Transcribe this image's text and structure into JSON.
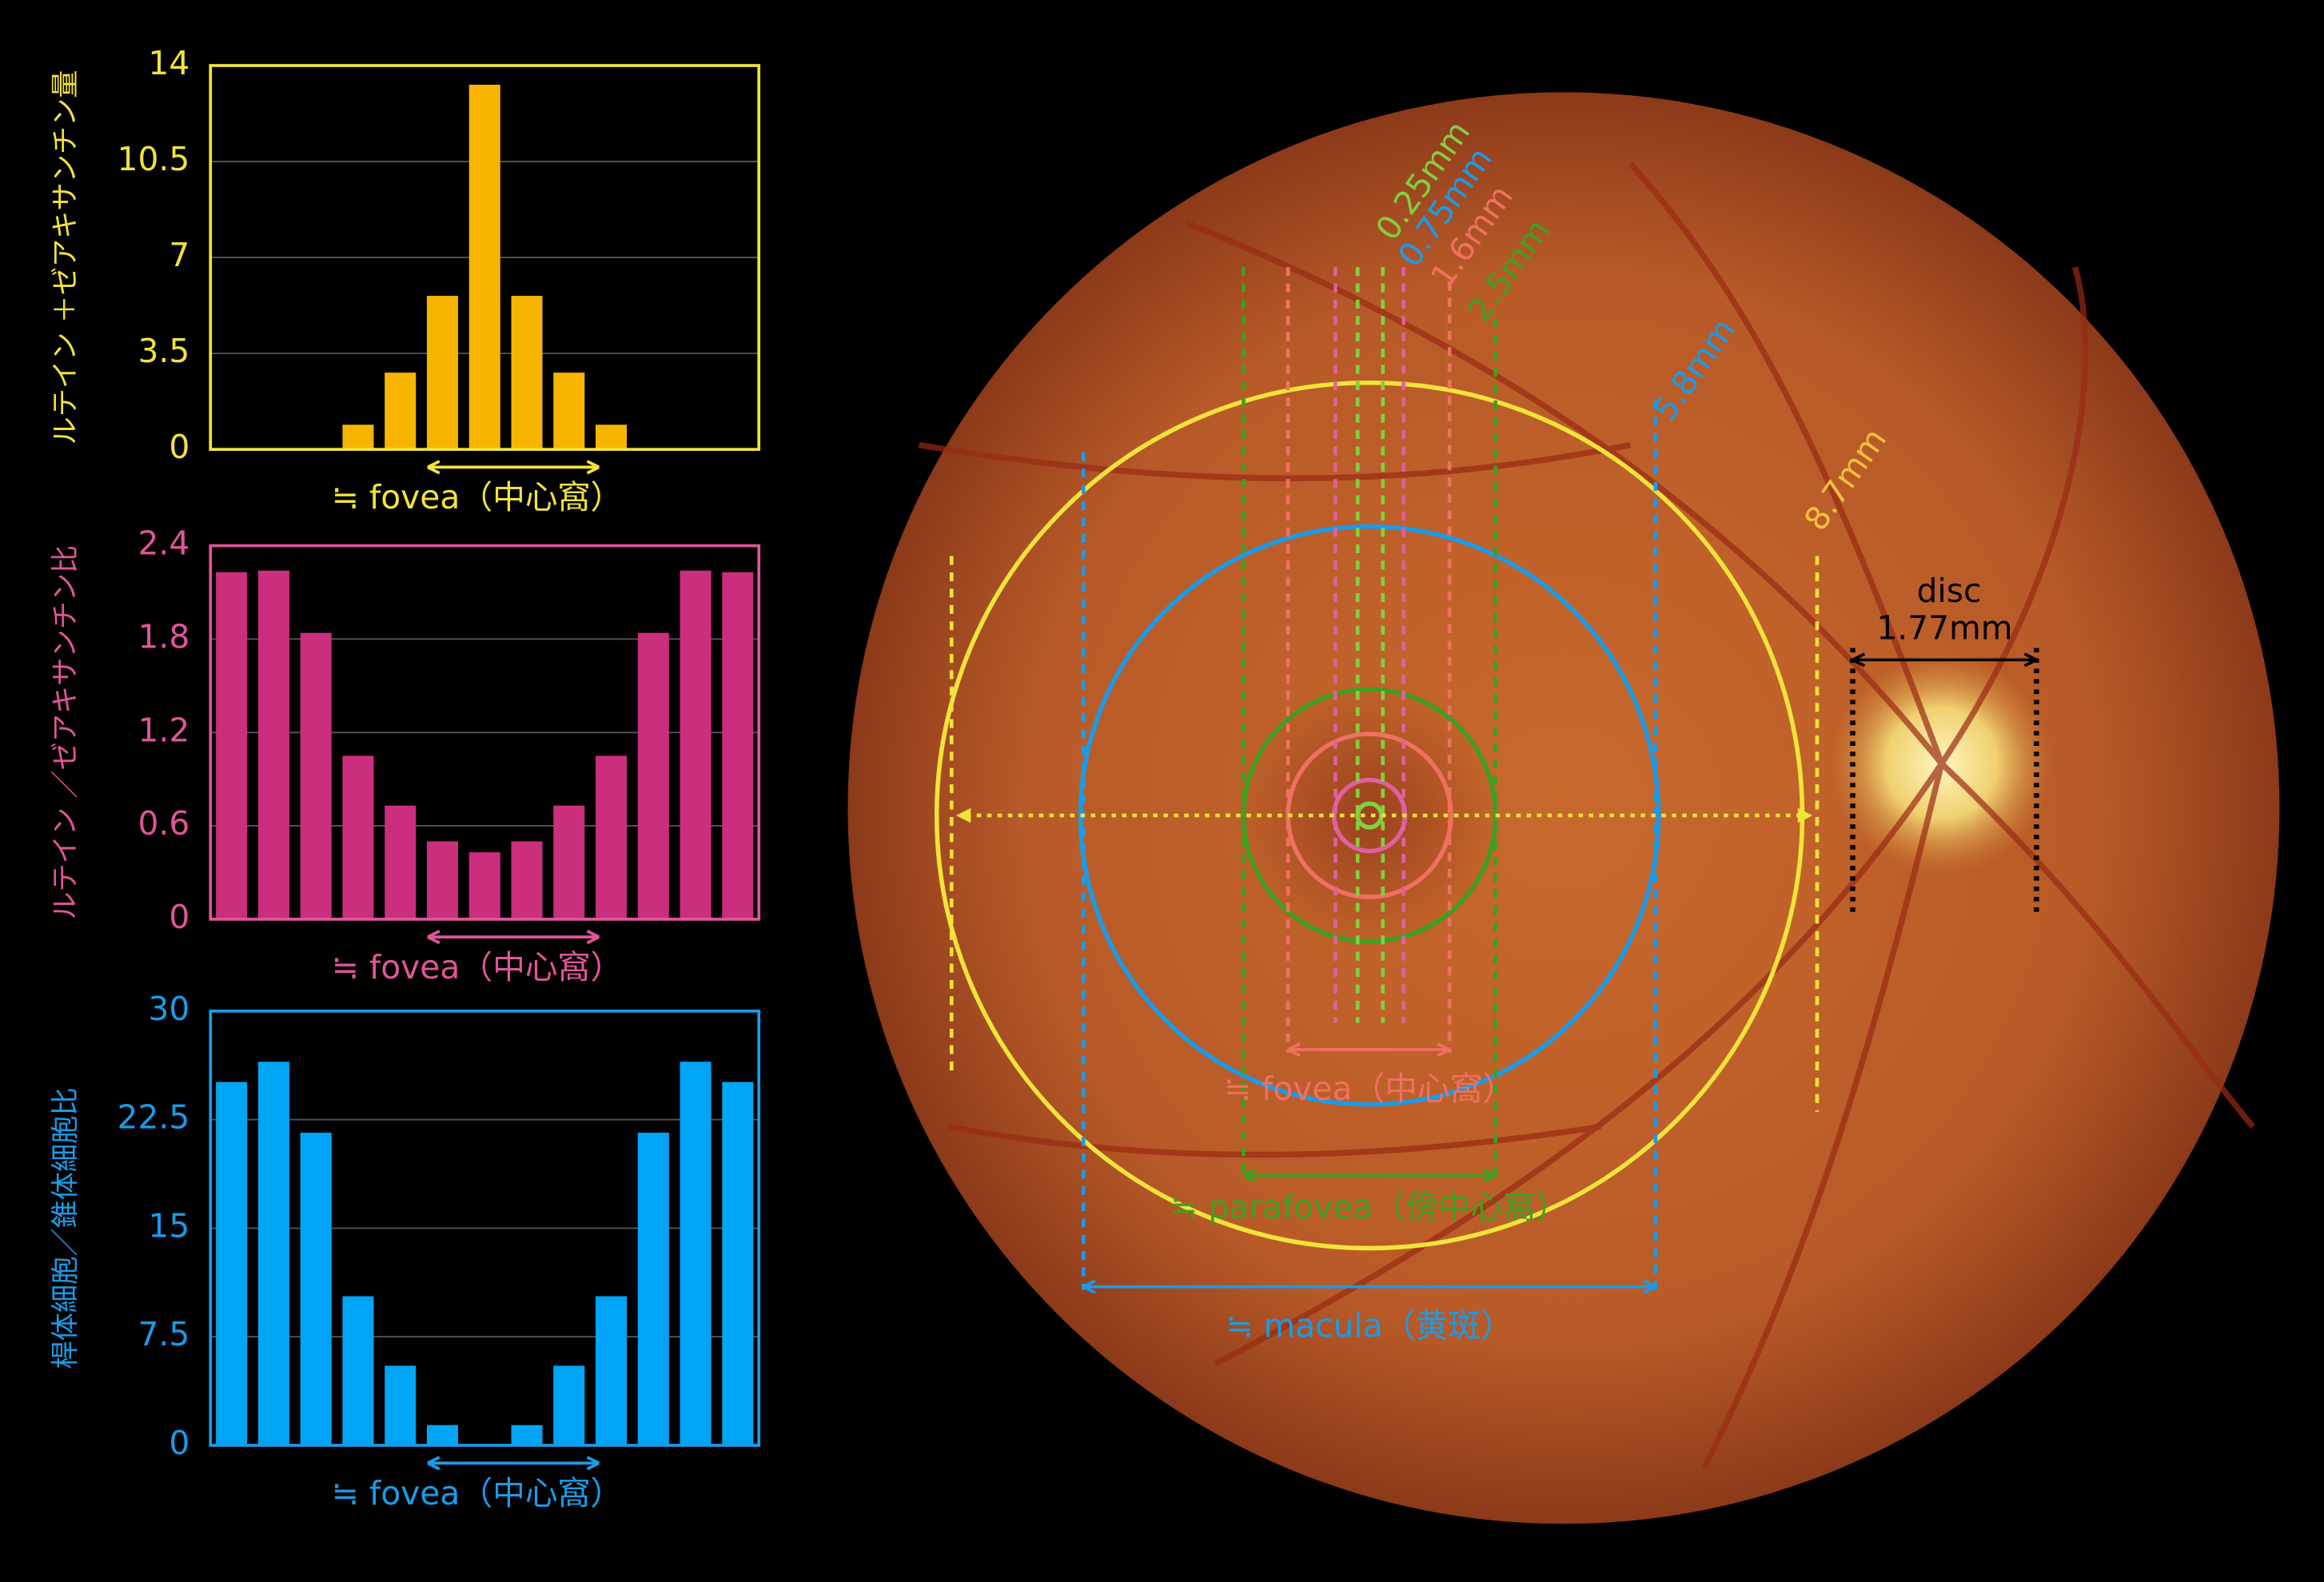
{
  "chart_data": [
    {
      "type": "bar",
      "ylabel": "ルテイン ＋ゼアキサンチン量",
      "xlabel": "≒ fovea（中心窩）",
      "categories": [
        null,
        null,
        null,
        null,
        null,
        null,
        null,
        null,
        null,
        null,
        null,
        null,
        null
      ],
      "values": [
        0,
        0,
        0,
        0.9,
        2.8,
        5.6,
        13.3,
        5.6,
        2.8,
        0.9,
        0,
        0,
        0
      ],
      "color": "#f7b500",
      "accent": "#f2e33a",
      "ylim": [
        0,
        14
      ],
      "yticks": [
        0,
        3.5,
        7,
        10.5,
        14
      ],
      "grid": true
    },
    {
      "type": "bar",
      "ylabel": "ルテイン ／ゼアキサンチン比",
      "xlabel": "≒ fovea（中心窩）",
      "categories": [
        null,
        null,
        null,
        null,
        null,
        null,
        null,
        null,
        null,
        null,
        null,
        null,
        null
      ],
      "values": [
        2.23,
        2.24,
        1.84,
        1.05,
        0.73,
        0.5,
        0.43,
        0.5,
        0.73,
        1.05,
        1.84,
        2.24,
        2.23
      ],
      "color": "#cc2e7e",
      "accent": "#e0559a",
      "ylim": [
        0,
        2.4
      ],
      "yticks": [
        0,
        0.6,
        1.2,
        1.8,
        2.4
      ],
      "grid": true
    },
    {
      "type": "bar",
      "ylabel": "桿体細胞／錐体細胞比",
      "xlabel": "≒ fovea（中心窩）",
      "categories": [
        null,
        null,
        null,
        null,
        null,
        null,
        null,
        null,
        null,
        null,
        null,
        null,
        null
      ],
      "values": [
        25.1,
        26.5,
        21.6,
        10.3,
        5.5,
        1.4,
        0,
        1.4,
        5.5,
        10.3,
        21.6,
        26.5,
        25.1
      ],
      "color": "#00a6f5",
      "accent": "#1a9be8",
      "ylim": [
        0,
        30
      ],
      "yticks": [
        0,
        7.5,
        15,
        22.5,
        30
      ],
      "grid": true
    }
  ],
  "diagram": {
    "diameters": [
      "0.25mm",
      "0.75mm",
      "1.6mm",
      "2.5mm",
      "5.8mm",
      "8.7mm"
    ],
    "fovea": "≒ fovea（中心窩）",
    "parafovea": "≒ parafovea（傍中心窩）",
    "macula": "≒ macula（黄斑）",
    "disc": "disc",
    "disc_size": "1.77mm"
  }
}
